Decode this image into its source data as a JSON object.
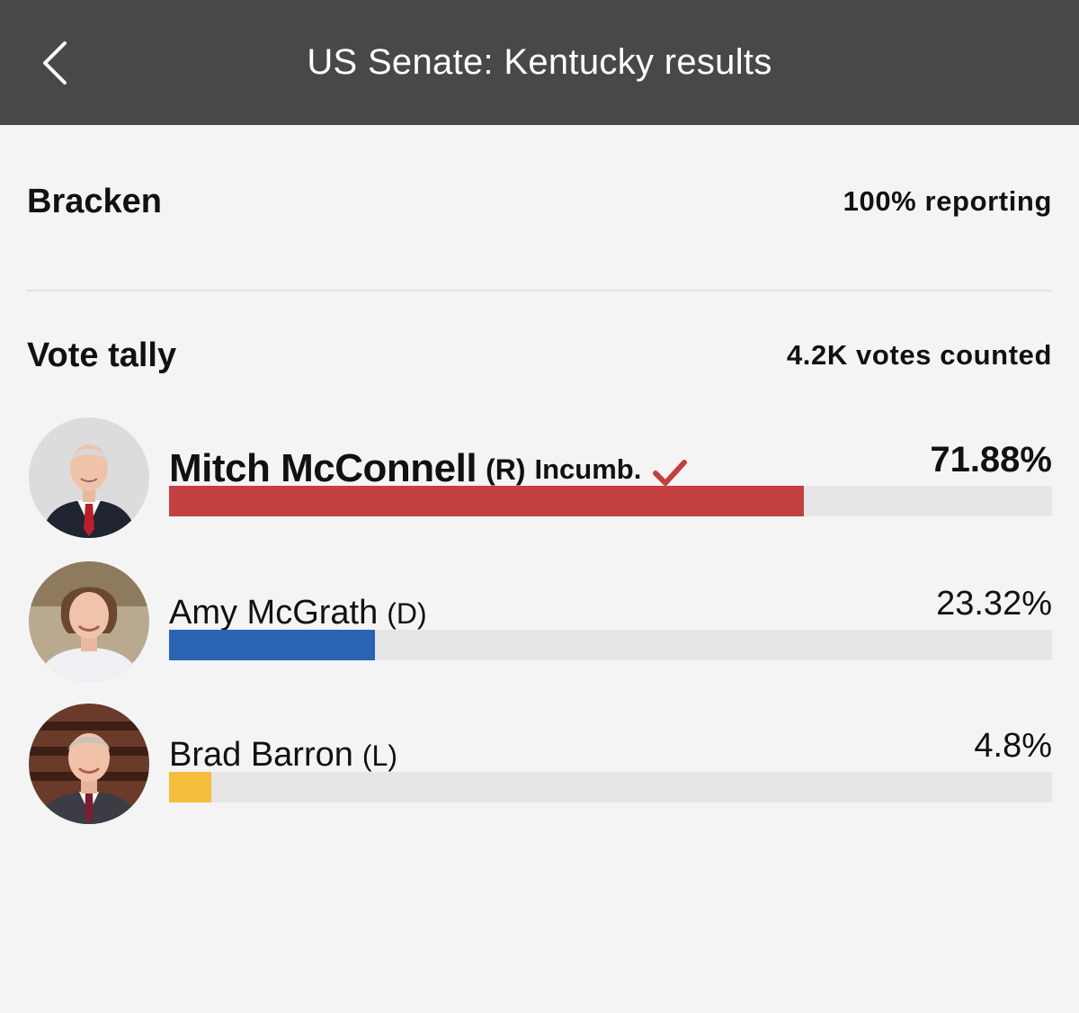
{
  "header": {
    "title": "US Senate: Kentucky results",
    "back_icon": "chevron-left-icon"
  },
  "county": {
    "name": "Bracken",
    "reporting": "100% reporting"
  },
  "tally": {
    "title": "Vote tally",
    "votes_counted": "4.2K votes counted"
  },
  "candidates": [
    {
      "name": "Mitch McConnell",
      "party": "(R)",
      "incumbent_label": "Incumb.",
      "winner": true,
      "percent_label": "71.88%",
      "percent": 71.88,
      "color": "#c44040"
    },
    {
      "name": "Amy McGrath",
      "party": "(D)",
      "incumbent_label": "",
      "winner": false,
      "percent_label": "23.32%",
      "percent": 23.32,
      "color": "#2b64b3"
    },
    {
      "name": "Brad Barron",
      "party": "(L)",
      "incumbent_label": "",
      "winner": false,
      "percent_label": "4.8%",
      "percent": 4.8,
      "color": "#f4be3a"
    }
  ],
  "colors": {
    "header_bg": "#484848",
    "page_bg": "#f4f4f4",
    "track": "#e6e6e6",
    "check": "#c44040"
  }
}
